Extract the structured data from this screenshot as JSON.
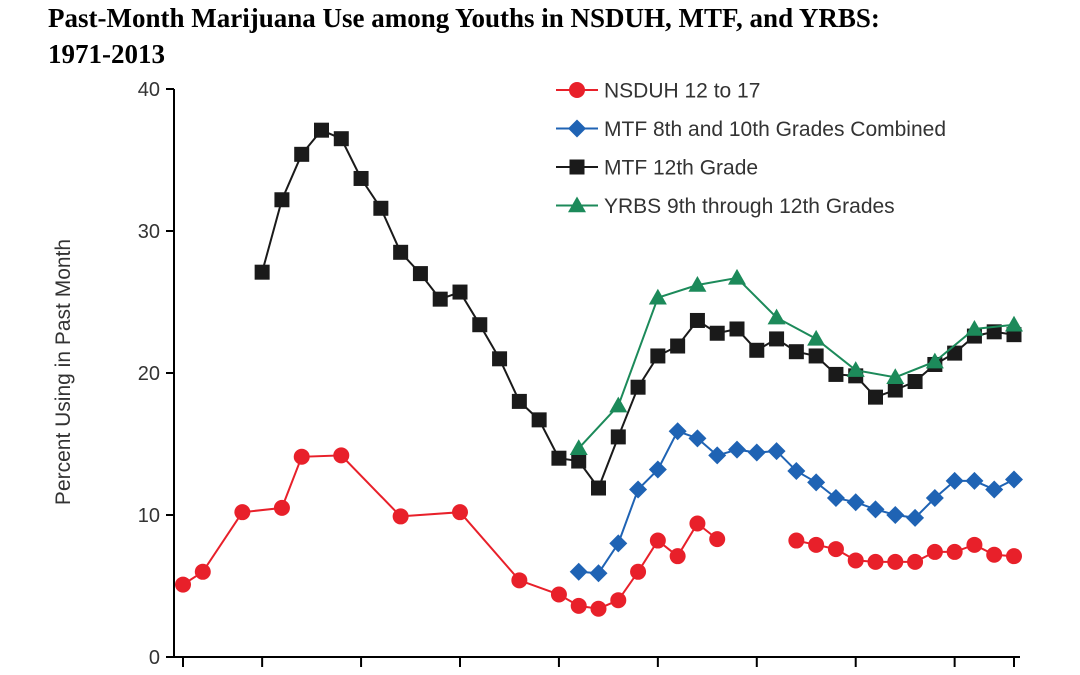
{
  "title_line1": "Past-Month Marijuana Use among Youths in NSDUH, MTF, and YRBS:",
  "title_line2": "1971-2013",
  "chart_data": {
    "type": "line",
    "title": "Past-Month Marijuana Use among Youths in NSDUH, MTF, and YRBS: 1971-2013",
    "xlabel": "",
    "ylabel": "Percent Using in Past Month",
    "xlim": [
      1971,
      2013
    ],
    "ylim": [
      0,
      40
    ],
    "yticks": [
      0,
      10,
      20,
      30,
      40
    ],
    "xticks": [
      1971,
      1975,
      1980,
      1985,
      1990,
      1995,
      2000,
      2005,
      2010,
      2013
    ],
    "xtick_labels_visible": false,
    "grid": false,
    "legend_position": "top-right",
    "series": [
      {
        "name": "NSDUH 12 to 17",
        "color": "#e8202a",
        "marker": "circle",
        "segments": [
          [
            [
              1971,
              5.1
            ],
            [
              1972,
              6.0
            ],
            [
              1974,
              10.2
            ],
            [
              1976,
              10.5
            ],
            [
              1977,
              14.1
            ],
            [
              1979,
              14.2
            ],
            [
              1982,
              9.9
            ],
            [
              1985,
              10.2
            ],
            [
              1988,
              5.4
            ],
            [
              1990,
              4.4
            ],
            [
              1991,
              3.6
            ],
            [
              1992,
              3.4
            ],
            [
              1993,
              4.0
            ],
            [
              1994,
              6.0
            ],
            [
              1995,
              8.2
            ],
            [
              1996,
              7.1
            ],
            [
              1997,
              9.4
            ],
            [
              1998,
              8.3
            ]
          ],
          [
            [
              2002,
              8.2
            ],
            [
              2003,
              7.9
            ],
            [
              2004,
              7.6
            ],
            [
              2005,
              6.8
            ],
            [
              2006,
              6.7
            ],
            [
              2007,
              6.7
            ],
            [
              2008,
              6.7
            ],
            [
              2009,
              7.4
            ],
            [
              2010,
              7.4
            ],
            [
              2011,
              7.9
            ],
            [
              2012,
              7.2
            ],
            [
              2013,
              7.1
            ]
          ]
        ]
      },
      {
        "name": "MTF 8th and 10th Grades Combined",
        "color": "#1f63b4",
        "marker": "diamond",
        "segments": [
          [
            [
              1991,
              6.0
            ],
            [
              1992,
              5.9
            ],
            [
              1993,
              8.0
            ],
            [
              1994,
              11.8
            ],
            [
              1995,
              13.2
            ],
            [
              1996,
              15.9
            ],
            [
              1997,
              15.4
            ],
            [
              1998,
              14.2
            ],
            [
              1999,
              14.6
            ],
            [
              2000,
              14.4
            ],
            [
              2001,
              14.5
            ],
            [
              2002,
              13.1
            ],
            [
              2003,
              12.3
            ],
            [
              2004,
              11.2
            ],
            [
              2005,
              10.9
            ],
            [
              2006,
              10.4
            ],
            [
              2007,
              10.0
            ],
            [
              2008,
              9.8
            ],
            [
              2009,
              11.2
            ],
            [
              2010,
              12.4
            ],
            [
              2011,
              12.4
            ],
            [
              2012,
              11.8
            ],
            [
              2013,
              12.5
            ]
          ]
        ]
      },
      {
        "name": "MTF 12th Grade",
        "color": "#1a1a1a",
        "marker": "square",
        "segments": [
          [
            [
              1975,
              27.1
            ],
            [
              1976,
              32.2
            ],
            [
              1977,
              35.4
            ],
            [
              1978,
              37.1
            ],
            [
              1979,
              36.5
            ],
            [
              1980,
              33.7
            ],
            [
              1981,
              31.6
            ],
            [
              1982,
              28.5
            ],
            [
              1983,
              27.0
            ],
            [
              1984,
              25.2
            ],
            [
              1985,
              25.7
            ],
            [
              1986,
              23.4
            ],
            [
              1987,
              21.0
            ],
            [
              1988,
              18.0
            ],
            [
              1989,
              16.7
            ],
            [
              1990,
              14.0
            ],
            [
              1991,
              13.8
            ],
            [
              1992,
              11.9
            ],
            [
              1993,
              15.5
            ],
            [
              1994,
              19.0
            ],
            [
              1995,
              21.2
            ],
            [
              1996,
              21.9
            ],
            [
              1997,
              23.7
            ],
            [
              1998,
              22.8
            ],
            [
              1999,
              23.1
            ],
            [
              2000,
              21.6
            ],
            [
              2001,
              22.4
            ],
            [
              2002,
              21.5
            ],
            [
              2003,
              21.2
            ],
            [
              2004,
              19.9
            ],
            [
              2005,
              19.8
            ],
            [
              2006,
              18.3
            ],
            [
              2007,
              18.8
            ],
            [
              2008,
              19.4
            ],
            [
              2009,
              20.6
            ],
            [
              2010,
              21.4
            ],
            [
              2011,
              22.6
            ],
            [
              2012,
              22.9
            ],
            [
              2013,
              22.7
            ]
          ]
        ]
      },
      {
        "name": "YRBS 9th through 12th Grades",
        "color": "#1c8a5a",
        "marker": "triangle",
        "segments": [
          [
            [
              1991,
              14.7
            ],
            [
              1993,
              17.7
            ],
            [
              1995,
              25.3
            ],
            [
              1997,
              26.2
            ],
            [
              1999,
              26.7
            ],
            [
              2001,
              23.9
            ],
            [
              2003,
              22.4
            ],
            [
              2005,
              20.2
            ],
            [
              2007,
              19.7
            ],
            [
              2009,
              20.8
            ],
            [
              2011,
              23.1
            ],
            [
              2013,
              23.4
            ]
          ]
        ]
      }
    ]
  }
}
